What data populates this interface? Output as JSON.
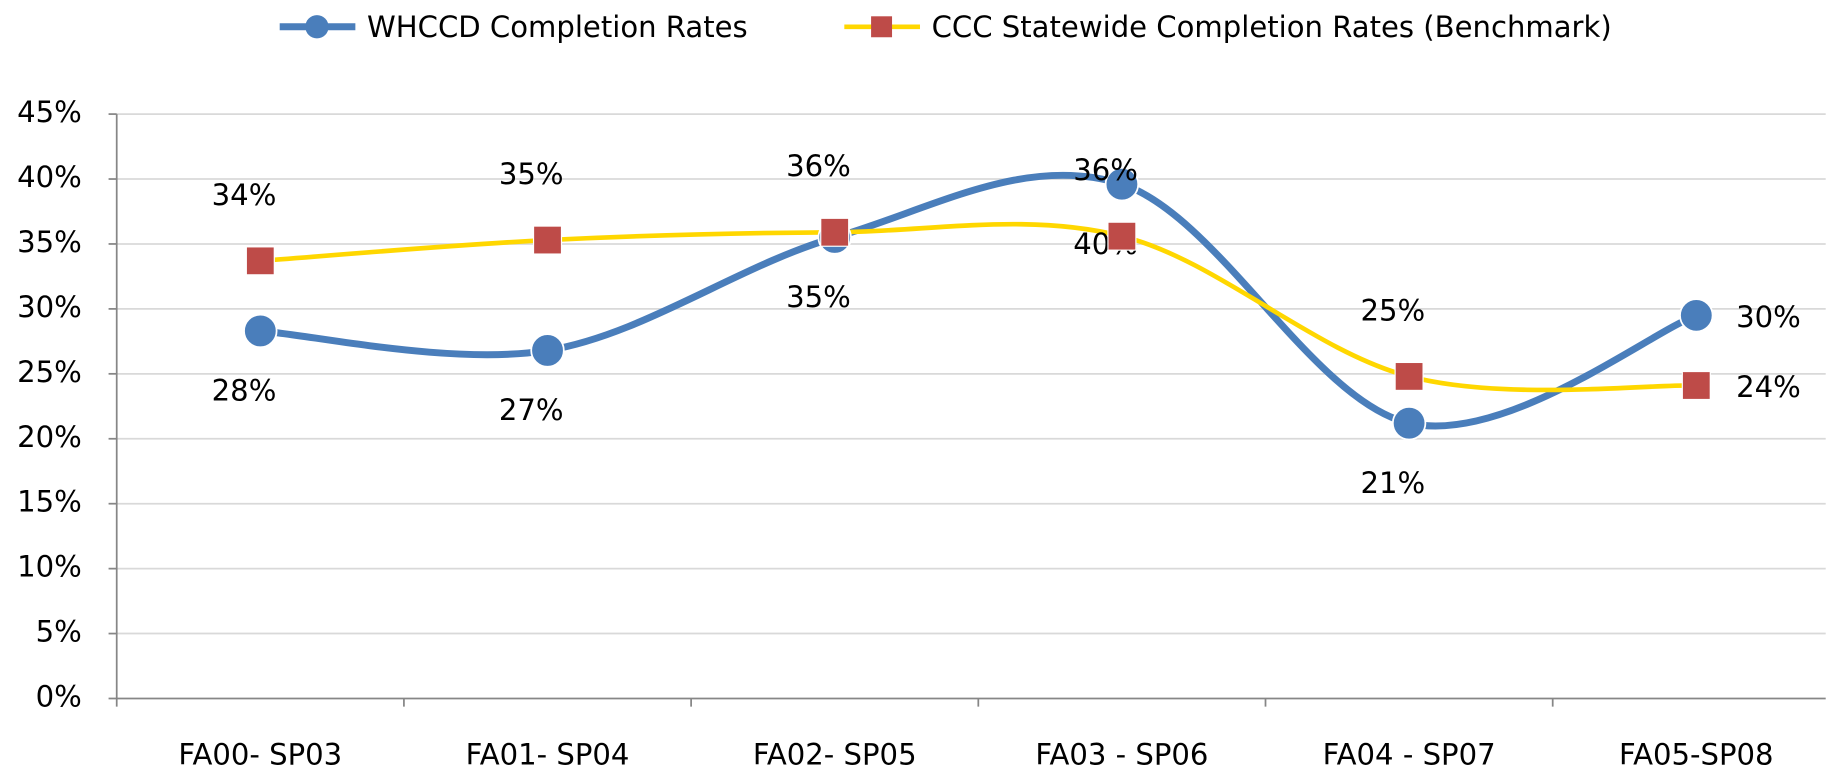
{
  "chart_data": {
    "type": "line",
    "categories": [
      "FA00- SP03",
      "FA01- SP04",
      "FA02- SP05",
      "FA03 - SP06",
      "FA04 - SP07",
      "FA05-SP08"
    ],
    "series": [
      {
        "name": "WHCCD Completion  Rates",
        "color": "#4a7ebb",
        "marker": "circle",
        "values": [
          28.3,
          26.8,
          35.5,
          39.6,
          21.2,
          29.5
        ],
        "value_labels": [
          "28%",
          "27%",
          "35%",
          "40%",
          "21%",
          "30%"
        ]
      },
      {
        "name": "CCC Statewide Completion  Rates (Benchmark)",
        "color": "#ffd700",
        "marker_color": "#be4b48",
        "marker": "square",
        "values": [
          33.7,
          35.3,
          35.9,
          35.6,
          24.8,
          24.1
        ],
        "value_labels": [
          "34%",
          "35%",
          "36%",
          "36%",
          "25%",
          "24%"
        ]
      }
    ],
    "ylim": [
      0,
      45
    ],
    "yticks": [
      {
        "value": 0,
        "label": "0%"
      },
      {
        "value": 5,
        "label": "5%"
      },
      {
        "value": 10,
        "label": "10%"
      },
      {
        "value": 15,
        "label": "15%"
      },
      {
        "value": 20,
        "label": "20%"
      },
      {
        "value": 25,
        "label": "25%"
      },
      {
        "value": 30,
        "label": "30%"
      },
      {
        "value": 35,
        "label": "35%"
      },
      {
        "value": 40,
        "label": "40%"
      },
      {
        "value": 45,
        "label": "45%"
      }
    ],
    "grid": true,
    "smooth": true,
    "legend": "top"
  }
}
